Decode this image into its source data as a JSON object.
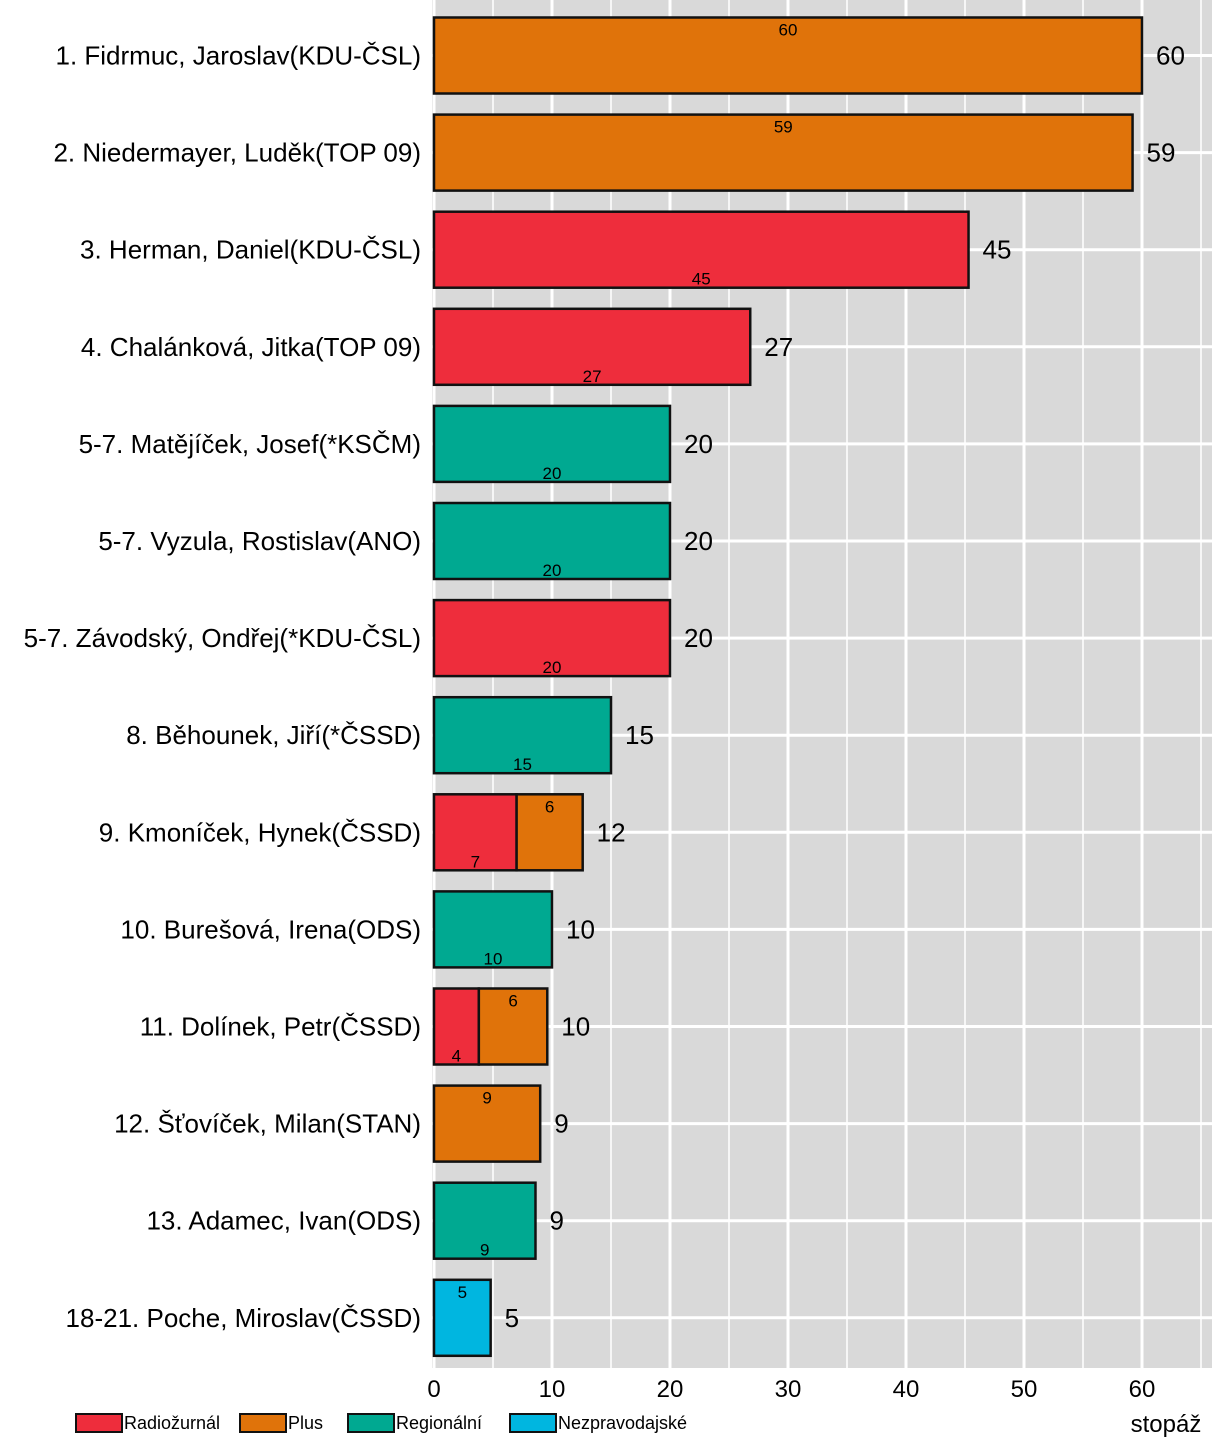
{
  "chart_data": {
    "type": "bar",
    "orientation": "horizontal",
    "stacked": true,
    "categories": [
      "1. Fidrmuc, Jaroslav(KDU-ČSL)",
      "2. Niedermayer, Luděk(TOP 09)",
      "3. Herman, Daniel(KDU-ČSL)",
      "4. Chalánková, Jitka(TOP 09)",
      "5-7. Matějíček, Josef(*KSČM)",
      "5-7. Vyzula, Rostislav(ANO)",
      "5-7. Závodský, Ondřej(*KDU-ČSL)",
      "8. Běhounek, Jiří(*ČSSD)",
      "9. Kmoníček, Hynek(ČSSD)",
      "10. Burešová, Irena(ODS)",
      "11. Dolínek, Petr(ČSSD)",
      "12. Šťovíček, Milan(STAN)",
      "13. Adamec, Ivan(ODS)",
      "18-21. Poche, Miroslav(ČSSD)"
    ],
    "series": [
      {
        "name": "Radiožurnál",
        "color": "#ee2d3c",
        "values": [
          0,
          0,
          45,
          27,
          0,
          0,
          20,
          0,
          7,
          0,
          4,
          0,
          0,
          0
        ]
      },
      {
        "name": "Plus",
        "color": "#e0730a",
        "values": [
          60,
          59,
          0,
          0,
          0,
          0,
          0,
          0,
          6,
          0,
          6,
          9,
          0,
          0
        ]
      },
      {
        "name": "Regionální",
        "color": "#00a991",
        "values": [
          0,
          0,
          0,
          0,
          20,
          20,
          0,
          15,
          0,
          10,
          0,
          0,
          9,
          0
        ]
      },
      {
        "name": "Nezpravodajské",
        "color": "#00b6e0",
        "values": [
          0,
          0,
          0,
          0,
          0,
          0,
          0,
          0,
          0,
          0,
          0,
          0,
          0,
          5
        ]
      }
    ],
    "totals": [
      "60",
      "59",
      "45",
      "27",
      "20",
      "20",
      "20",
      "15",
      "12",
      "10",
      "10",
      "9",
      "9",
      "5"
    ],
    "segment_labels": [
      [
        null,
        "60",
        null,
        null
      ],
      [
        null,
        "59",
        null,
        null
      ],
      [
        "45",
        null,
        null,
        null
      ],
      [
        "27",
        null,
        null,
        null
      ],
      [
        null,
        null,
        "20",
        null
      ],
      [
        null,
        null,
        "20",
        null
      ],
      [
        "20",
        null,
        null,
        null
      ],
      [
        null,
        null,
        "15",
        null
      ],
      [
        "7",
        "6",
        null,
        null
      ],
      [
        null,
        null,
        "10",
        null
      ],
      [
        "4",
        "6",
        null,
        null
      ],
      [
        null,
        "9",
        null,
        null
      ],
      [
        null,
        null,
        "9",
        null
      ],
      [
        null,
        null,
        null,
        "5"
      ]
    ],
    "segment_values_exact": [
      [
        0,
        60,
        0,
        0
      ],
      [
        0,
        59.2,
        0,
        0
      ],
      [
        45.3,
        0,
        0,
        0
      ],
      [
        26.8,
        0,
        0,
        0
      ],
      [
        0,
        0,
        20,
        0
      ],
      [
        0,
        0,
        20,
        0
      ],
      [
        20,
        0,
        0,
        0
      ],
      [
        0,
        0,
        15,
        0
      ],
      [
        7,
        5.6,
        0,
        0
      ],
      [
        0,
        0,
        10,
        0
      ],
      [
        3.8,
        5.8,
        0,
        0
      ],
      [
        0,
        9,
        0,
        0
      ],
      [
        0,
        0,
        8.6,
        0
      ],
      [
        0,
        0,
        0,
        4.8
      ]
    ],
    "xticks": [
      "0",
      "10",
      "20",
      "30",
      "40",
      "50",
      "60"
    ],
    "xlim": [
      0,
      65.5
    ],
    "xlabel": "stopáž",
    "title": "",
    "ylabel": "",
    "grid": true,
    "background": "#d9d9d9",
    "legend_position": "bottom"
  }
}
